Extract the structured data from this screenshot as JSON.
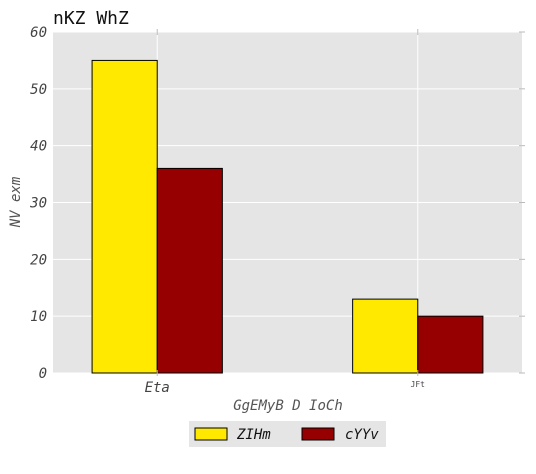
{
  "chart_data": {
    "type": "bar",
    "title": "nKZ WhZ",
    "xlabel": "GgEMyB D IoCh",
    "ylabel": "NV exm",
    "categories": [
      "Eta",
      "JFt"
    ],
    "series": [
      {
        "name": "ZIHm",
        "values": [
          55,
          13
        ],
        "color": "#ffe900"
      },
      {
        "name": "cYYv",
        "values": [
          36,
          10
        ],
        "color": "#960000"
      }
    ],
    "ylim": [
      0,
      60
    ],
    "yticks": [
      0,
      10,
      20,
      30,
      40,
      50,
      60
    ],
    "grid": true,
    "plot_background": "#e5e5e5",
    "legend_position": "bottom-center"
  }
}
